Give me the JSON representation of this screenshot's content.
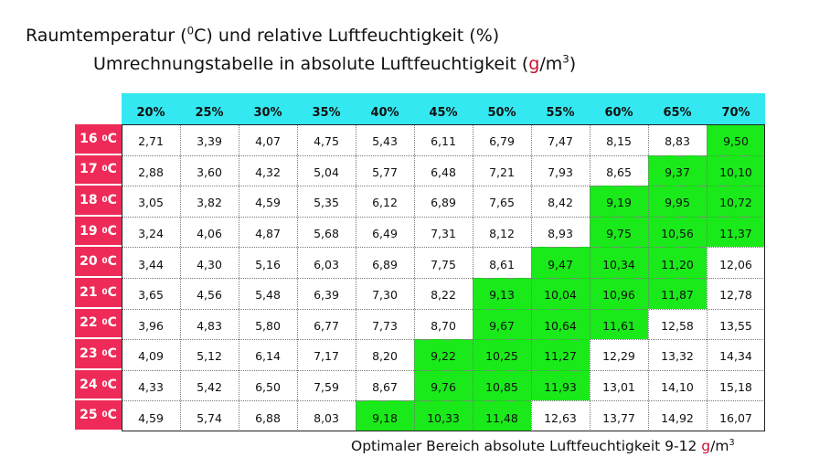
{
  "title": {
    "line1_prefix": "Raumtemperatur (",
    "line1_sup": "0",
    "line1_suffix": "C)  und relative Luftfeuchtigkeit (%)",
    "line2_prefix": "Umrechnungstabelle in absolute Luftfeuchtigkeit (",
    "line2_g": "g",
    "line2_unit": "/m",
    "line2_sup": "3",
    "line2_close": ")"
  },
  "footer": {
    "prefix": "Optimaler Bereich absolute Luftfeuchtigkeit 9-12 ",
    "g": "g",
    "unit": "/m",
    "sup": "3"
  },
  "colors": {
    "header_bg": "#33e8f0",
    "row_header_bg": "#ee2b58",
    "optimal_bg": "#1aea1a"
  },
  "chart_data": {
    "type": "table",
    "column_headers": [
      "20%",
      "25%",
      "30%",
      "35%",
      "40%",
      "45%",
      "50%",
      "55%",
      "60%",
      "65%",
      "70%"
    ],
    "rows": [
      {
        "temp": "16",
        "unit_sup": "0",
        "unit": "C",
        "values": [
          "2,71",
          "3,39",
          "4,07",
          "4,75",
          "5,43",
          "6,11",
          "6,79",
          "7,47",
          "8,15",
          "8,83",
          "9,50"
        ],
        "optimal": [
          10
        ]
      },
      {
        "temp": "17",
        "unit_sup": "0",
        "unit": "C",
        "values": [
          "2,88",
          "3,60",
          "4,32",
          "5,04",
          "5,77",
          "6,48",
          "7,21",
          "7,93",
          "8,65",
          "9,37",
          "10,10"
        ],
        "optimal": [
          9,
          10
        ]
      },
      {
        "temp": "18",
        "unit_sup": "0",
        "unit": "C",
        "values": [
          "3,05",
          "3,82",
          "4,59",
          "5,35",
          "6,12",
          "6,89",
          "7,65",
          "8,42",
          "9,19",
          "9,95",
          "10,72"
        ],
        "optimal": [
          8,
          9,
          10
        ]
      },
      {
        "temp": "19",
        "unit_sup": "0",
        "unit": "C",
        "values": [
          "3,24",
          "4,06",
          "4,87",
          "5,68",
          "6,49",
          "7,31",
          "8,12",
          "8,93",
          "9,75",
          "10,56",
          "11,37"
        ],
        "optimal": [
          8,
          9,
          10
        ]
      },
      {
        "temp": "20",
        "unit_sup": "0",
        "unit": "C",
        "values": [
          "3,44",
          "4,30",
          "5,16",
          "6,03",
          "6,89",
          "7,75",
          "8,61",
          "9,47",
          "10,34",
          "11,20",
          "12,06"
        ],
        "optimal": [
          7,
          8,
          9
        ]
      },
      {
        "temp": "21",
        "unit_sup": "0",
        "unit": "C",
        "values": [
          "3,65",
          "4,56",
          "5,48",
          "6,39",
          "7,30",
          "8,22",
          "9,13",
          "10,04",
          "10,96",
          "11,87",
          "12,78"
        ],
        "optimal": [
          6,
          7,
          8,
          9
        ]
      },
      {
        "temp": "22",
        "unit_sup": "0",
        "unit": "C",
        "values": [
          "3,96",
          "4,83",
          "5,80",
          "6,77",
          "7,73",
          "8,70",
          "9,67",
          "10,64",
          "11,61",
          "12,58",
          "13,55"
        ],
        "optimal": [
          6,
          7,
          8
        ]
      },
      {
        "temp": "23",
        "unit_sup": "0",
        "unit": "C",
        "values": [
          "4,09",
          "5,12",
          "6,14",
          "7,17",
          "8,20",
          "9,22",
          "10,25",
          "11,27",
          "12,29",
          "13,32",
          "14,34"
        ],
        "optimal": [
          5,
          6,
          7
        ]
      },
      {
        "temp": "24",
        "unit_sup": "0",
        "unit": "C",
        "values": [
          "4,33",
          "5,42",
          "6,50",
          "7,59",
          "8,67",
          "9,76",
          "10,85",
          "11,93",
          "13,01",
          "14,10",
          "15,18"
        ],
        "optimal": [
          5,
          6,
          7
        ]
      },
      {
        "temp": "25",
        "unit_sup": "0",
        "unit": "C",
        "values": [
          "4,59",
          "5,74",
          "6,88",
          "8,03",
          "9,18",
          "10,33",
          "11,48",
          "12,63",
          "13,77",
          "14,92",
          "16,07"
        ],
        "optimal": [
          4,
          5,
          6
        ]
      }
    ]
  }
}
